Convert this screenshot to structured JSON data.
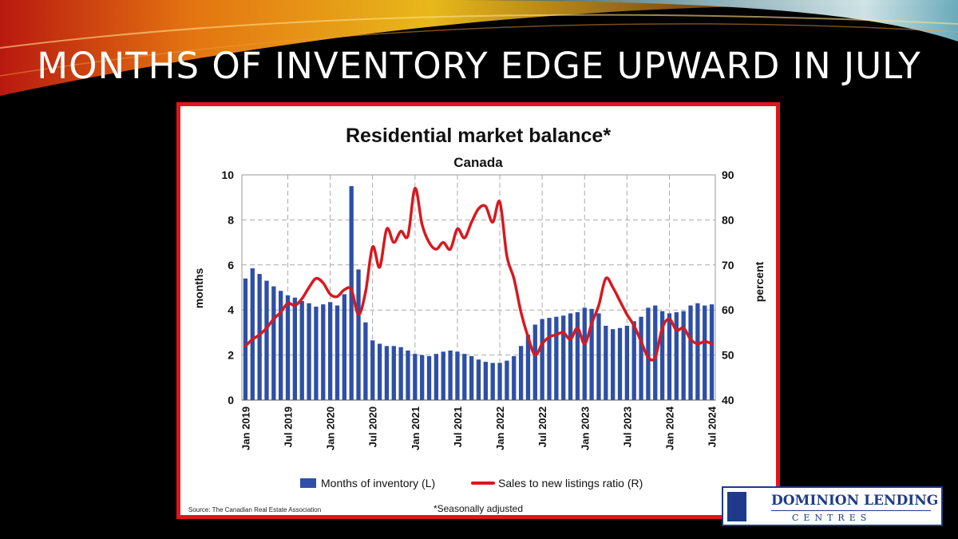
{
  "slide": {
    "title": "MONTHS OF INVENTORY EDGE UPWARD IN JULY"
  },
  "logo": {
    "name": "DOMINION LENDING",
    "sub": "CENTRES"
  },
  "colors": {
    "bars": "#2e4fa7",
    "line": "#d7191f",
    "frame": "#e3141b",
    "title": "#ffffff"
  },
  "chart_data": {
    "type": "bar",
    "title": "Residential market balance*",
    "subtitle": "Canada",
    "ylabel_left": "months",
    "ylabel_right": "percent",
    "ylim_left": [
      0,
      10
    ],
    "ylim_right": [
      40,
      90
    ],
    "yticks_left": [
      0,
      2,
      4,
      6,
      8,
      10
    ],
    "yticks_right": [
      40,
      50,
      60,
      70,
      80,
      90
    ],
    "x_ticks": [
      "Jan 2019",
      "Jul 2019",
      "Jan 2020",
      "Jul 2020",
      "Jan 2021",
      "Jul 2021",
      "Jan 2022",
      "Jul 2022",
      "Jan 2023",
      "Jul 2023",
      "Jan 2024",
      "Jul 2024"
    ],
    "grid": true,
    "legend_position": "bottom",
    "source": "Source: The Canadian Real Estate Association",
    "footnote": "*Seasonally adjusted",
    "series": [
      {
        "name": "Months of inventory (L)",
        "type": "bar",
        "axis": "left",
        "values": [
          5.4,
          5.85,
          5.6,
          5.3,
          5.05,
          4.85,
          4.65,
          4.55,
          4.4,
          4.3,
          4.15,
          4.25,
          4.35,
          4.2,
          4.7,
          9.5,
          5.8,
          3.45,
          2.65,
          2.5,
          2.4,
          2.4,
          2.35,
          2.2,
          2.05,
          2.0,
          1.95,
          2.05,
          2.15,
          2.2,
          2.15,
          2.05,
          1.95,
          1.8,
          1.7,
          1.65,
          1.65,
          1.75,
          1.95,
          2.4,
          2.9,
          3.35,
          3.6,
          3.65,
          3.7,
          3.75,
          3.85,
          3.9,
          4.1,
          4.05,
          3.85,
          3.3,
          3.15,
          3.2,
          3.3,
          3.5,
          3.7,
          4.1,
          4.2,
          3.95,
          3.85,
          3.9,
          3.95,
          4.2,
          4.3,
          4.2,
          4.25
        ]
      },
      {
        "name": "Sales to new listings ratio (R)",
        "type": "line",
        "axis": "right",
        "values": [
          52,
          53.5,
          54.5,
          56,
          58,
          59.5,
          61.5,
          61,
          62.5,
          65,
          67,
          66,
          63.5,
          63,
          64.5,
          64.5,
          59,
          64,
          74,
          69.5,
          78,
          75,
          77.5,
          76.5,
          87,
          79,
          75,
          73.5,
          75,
          73.5,
          78,
          76,
          79.5,
          82.5,
          83,
          79.5,
          84,
          72,
          67,
          59.5,
          54,
          50,
          52.5,
          54,
          54.5,
          55,
          53.5,
          56,
          52.5,
          57,
          61,
          67,
          65,
          62,
          59,
          56.5,
          53,
          49.5,
          49.5,
          56,
          58,
          55.5,
          56,
          53.5,
          52.5,
          53,
          52.5
        ]
      }
    ]
  }
}
